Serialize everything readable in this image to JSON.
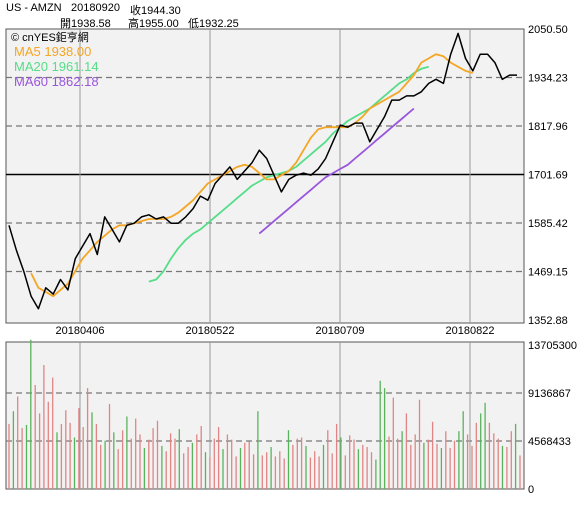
{
  "header": {
    "symbol": "US - AMZN",
    "date": "20180920",
    "close": "收1944.30",
    "open": "開1938.58",
    "high": "高1955.00",
    "low": "低1932.25"
  },
  "chart_data": [
    {
      "type": "line",
      "title": "",
      "source_watermark": "© cnYES鉅亨網",
      "x_tick_labels": [
        "20180406",
        "20180522",
        "20180709",
        "20180822"
      ],
      "y_tick_labels": [
        "2050.50",
        "1934.23",
        "1817.96",
        "1701.69",
        "1585.42",
        "1469.15",
        "1352.88"
      ],
      "ylim": [
        1352.88,
        2050.5
      ],
      "reference_line": 1701.69,
      "grid": true,
      "legend_position": "top-left",
      "colors": {
        "price": "#000000",
        "ma5": "#f5a623",
        "ma20": "#55dd88",
        "ma60": "#9955dd"
      },
      "legend": [
        {
          "key": "ma5",
          "label": "MA5 1938.00"
        },
        {
          "key": "ma20",
          "label": "MA20 1961.14"
        },
        {
          "key": "ma60",
          "label": "MA60 1862.18"
        }
      ],
      "series": [
        {
          "key": "price",
          "values": [
            1580,
            1520,
            1470,
            1410,
            1380,
            1430,
            1415,
            1450,
            1425,
            1500,
            1530,
            1560,
            1510,
            1600,
            1570,
            1540,
            1580,
            1585,
            1600,
            1605,
            1595,
            1600,
            1585,
            1585,
            1600,
            1620,
            1650,
            1640,
            1680,
            1700,
            1720,
            1690,
            1710,
            1730,
            1760,
            1740,
            1700,
            1660,
            1690,
            1700,
            1705,
            1700,
            1715,
            1740,
            1780,
            1820,
            1815,
            1825,
            1825,
            1780,
            1810,
            1840,
            1880,
            1880,
            1890,
            1890,
            1900,
            1920,
            1930,
            1920,
            1990,
            2040,
            1980,
            1950,
            1990,
            1990,
            1970,
            1930,
            1940,
            1940
          ]
        },
        {
          "key": "ma5",
          "start_index": 3,
          "values": [
            1465,
            1430,
            1420,
            1410,
            1425,
            1440,
            1470,
            1500,
            1520,
            1540,
            1555,
            1570,
            1580,
            1580,
            1585,
            1590,
            1595,
            1595,
            1595,
            1600,
            1610,
            1625,
            1640,
            1660,
            1680,
            1690,
            1700,
            1710,
            1720,
            1725,
            1720,
            1705,
            1690,
            1690,
            1700,
            1710,
            1730,
            1760,
            1790,
            1810,
            1815,
            1815,
            1815,
            1815,
            1825,
            1840,
            1860,
            1870,
            1880,
            1890,
            1900,
            1920,
            1940,
            1970,
            1980,
            1990,
            1985,
            1970,
            1960,
            1950,
            1945
          ]
        },
        {
          "key": "ma20",
          "start_index": 19,
          "values": [
            1445,
            1450,
            1470,
            1500,
            1525,
            1545,
            1560,
            1570,
            1585,
            1600,
            1615,
            1630,
            1645,
            1660,
            1675,
            1685,
            1695,
            1700,
            1705,
            1710,
            1720,
            1735,
            1750,
            1765,
            1780,
            1800,
            1815,
            1830,
            1840,
            1850,
            1860,
            1875,
            1890,
            1905,
            1920,
            1930,
            1945,
            1955,
            1960
          ]
        },
        {
          "key": "ma60",
          "start_index": 34,
          "values": [
            1560,
            1575,
            1590,
            1605,
            1620,
            1635,
            1650,
            1665,
            1680,
            1695,
            1705,
            1715,
            1725,
            1740,
            1755,
            1770,
            1785,
            1800,
            1815,
            1830,
            1845,
            1860
          ]
        }
      ]
    },
    {
      "type": "bar",
      "title": "",
      "y_tick_labels": [
        "13705300",
        "9136867",
        "4568433",
        "0"
      ],
      "ylim": [
        0,
        13705300
      ],
      "grid": true,
      "colors": {
        "up": "#e08585",
        "down": "#59b35c"
      },
      "values": [
        6.2,
        7.4,
        8.8,
        5.8,
        6.1,
        14.2,
        9.9,
        7.2,
        11.8,
        8.3,
        10.6,
        5.4,
        6.2,
        7.5,
        6.3,
        4.9,
        7.7,
        5.9,
        9.6,
        7.3,
        6.2,
        4.2,
        4.6,
        8.1,
        5.4,
        3.8,
        5.6,
        6.9,
        4.8,
        6.7,
        5.2,
        3.9,
        4.7,
        5.8,
        6.5,
        4.1,
        3.6,
        5.3,
        4.8,
        5.7,
        3.4,
        4.0,
        4.4,
        5.2,
        6.0,
        3.5,
        3.0,
        4.8,
        5.9,
        3.8,
        5.2,
        4.7,
        3.1,
        3.9,
        4.4,
        4.5,
        3.3,
        7.4,
        3.2,
        3.5,
        4.0,
        3.1,
        3.6,
        2.9,
        5.6,
        4.2,
        4.8,
        4.9,
        4.1,
        3.0,
        3.6,
        3.1,
        4.2,
        5.6,
        3.4,
        6.2,
        4.9,
        3.2,
        5.1,
        4.7,
        3.8,
        4.2,
        4.0,
        3.5,
        2.8,
        10.3,
        9.6,
        5.0,
        8.7,
        4.8,
        5.5,
        7.2,
        4.2,
        5.2,
        8.5,
        4.4,
        4.7,
        6.4,
        4.3,
        3.9,
        5.5,
        3.9,
        4.6,
        5.5,
        7.4,
        5.2,
        4.1,
        6.3,
        7.2,
        8.2,
        6.3,
        5.3,
        4.8,
        4.1,
        4.0,
        5.5,
        6.2,
        3.2
      ],
      "up": [
        1,
        0,
        1,
        1,
        0,
        0,
        1,
        1,
        1,
        1,
        1,
        0,
        1,
        1,
        1,
        0,
        1,
        1,
        1,
        0,
        1,
        1,
        0,
        1,
        0,
        1,
        1,
        0,
        1,
        1,
        1,
        0,
        1,
        1,
        1,
        0,
        1,
        1,
        1,
        0,
        1,
        1,
        0,
        1,
        1,
        0,
        1,
        1,
        1,
        0,
        1,
        1,
        1,
        0,
        1,
        1,
        1,
        0,
        1,
        1,
        0,
        1,
        1,
        1,
        0,
        1,
        1,
        1,
        0,
        1,
        1,
        1,
        0,
        1,
        1,
        1,
        0,
        1,
        1,
        1,
        0,
        1,
        1,
        1,
        0,
        0,
        0,
        1,
        1,
        1,
        0,
        1,
        1,
        1,
        1,
        0,
        1,
        1,
        1,
        0,
        1,
        1,
        1,
        0,
        0,
        1,
        1,
        1,
        0,
        0,
        1,
        1,
        1,
        0,
        1,
        1,
        0,
        1
      ]
    }
  ]
}
